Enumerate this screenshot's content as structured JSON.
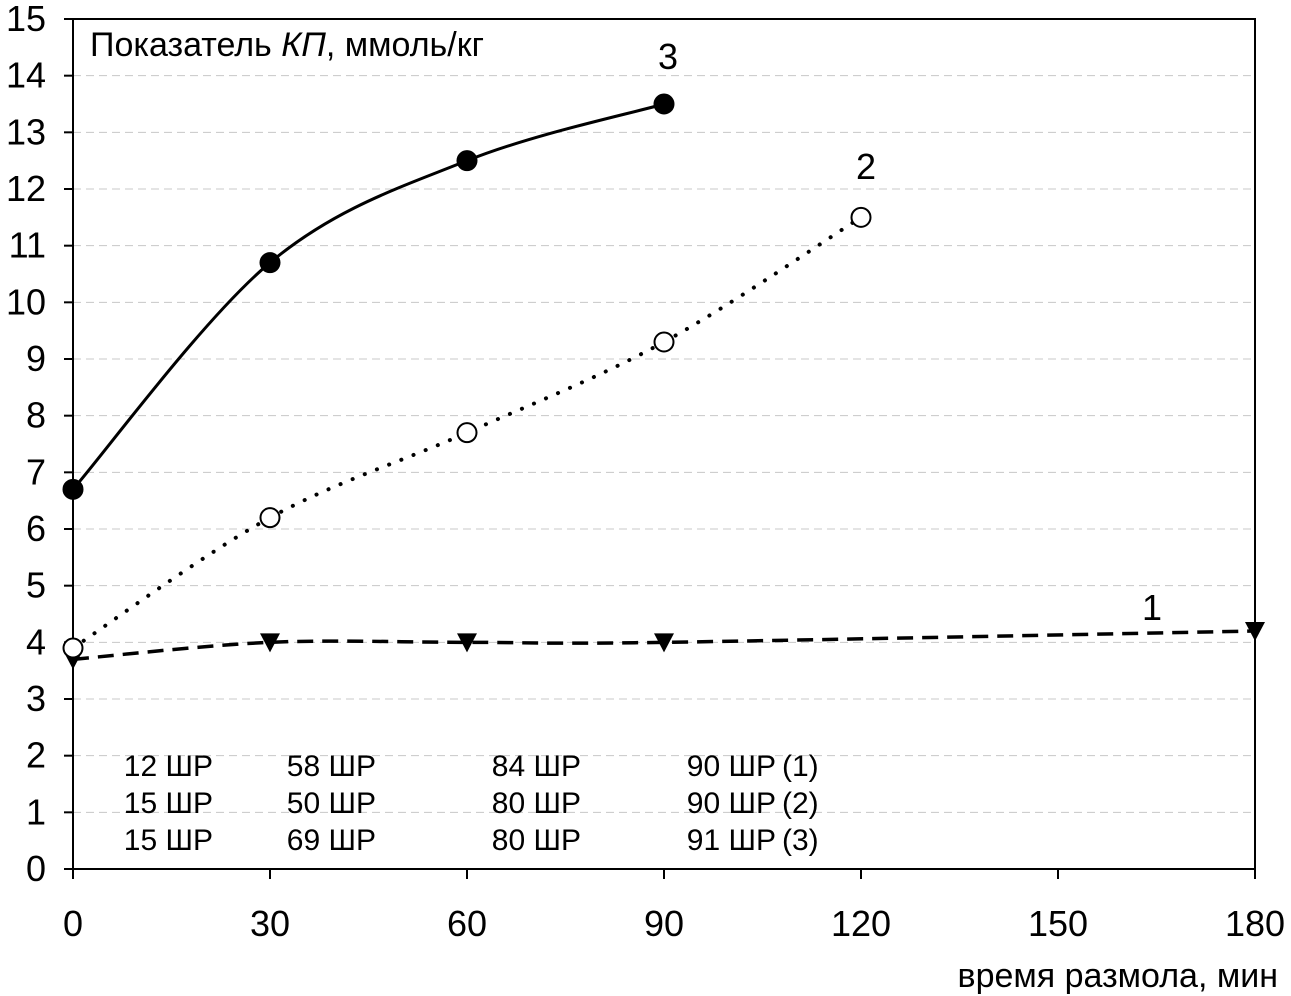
{
  "chart_data": {
    "type": "line",
    "title": "",
    "ylabel_parts": [
      "Показатель ",
      "КП",
      ", ммоль/кг"
    ],
    "xlabel": "время размола, мин",
    "xlim": [
      0,
      180
    ],
    "ylim": [
      0,
      15
    ],
    "x_ticks": [
      "0",
      "30",
      "60",
      "90",
      "120",
      "150",
      "180"
    ],
    "y_ticks": [
      "0",
      "1",
      "2",
      "3",
      "4",
      "5",
      "6",
      "7",
      "8",
      "9",
      "10",
      "11",
      "12",
      "13",
      "14",
      "15"
    ],
    "grid": "horizontal dashed",
    "series": [
      {
        "label": "1",
        "marker": "filled-triangle-down",
        "line": "dashed",
        "x": [
          0,
          30,
          60,
          90,
          180
        ],
        "y": [
          3.7,
          4.0,
          4.0,
          4.0,
          4.2
        ]
      },
      {
        "label": "2",
        "marker": "open-circle",
        "line": "dotted",
        "x": [
          0,
          30,
          60,
          90,
          120
        ],
        "y": [
          3.9,
          6.2,
          7.7,
          9.3,
          11.5
        ]
      },
      {
        "label": "3",
        "marker": "filled-circle",
        "line": "solid",
        "x": [
          0,
          30,
          60,
          90
        ],
        "y": [
          6.7,
          10.7,
          12.5,
          13.5
        ]
      }
    ],
    "annotations": {
      "rows": [
        [
          "12 ШР",
          "58 ШР",
          "84 ШР",
          "90 ШР",
          "(1)"
        ],
        [
          "15 ШР",
          "50 ШР",
          "80 ШР",
          "90 ШР",
          "(2)"
        ],
        [
          "15 ШР",
          "69 ШР",
          "80 ШР",
          "91 ШР",
          "(3)"
        ]
      ]
    },
    "colors": {
      "line": "#000000",
      "grid": "#c8c8c8",
      "background": "#ffffff"
    }
  }
}
